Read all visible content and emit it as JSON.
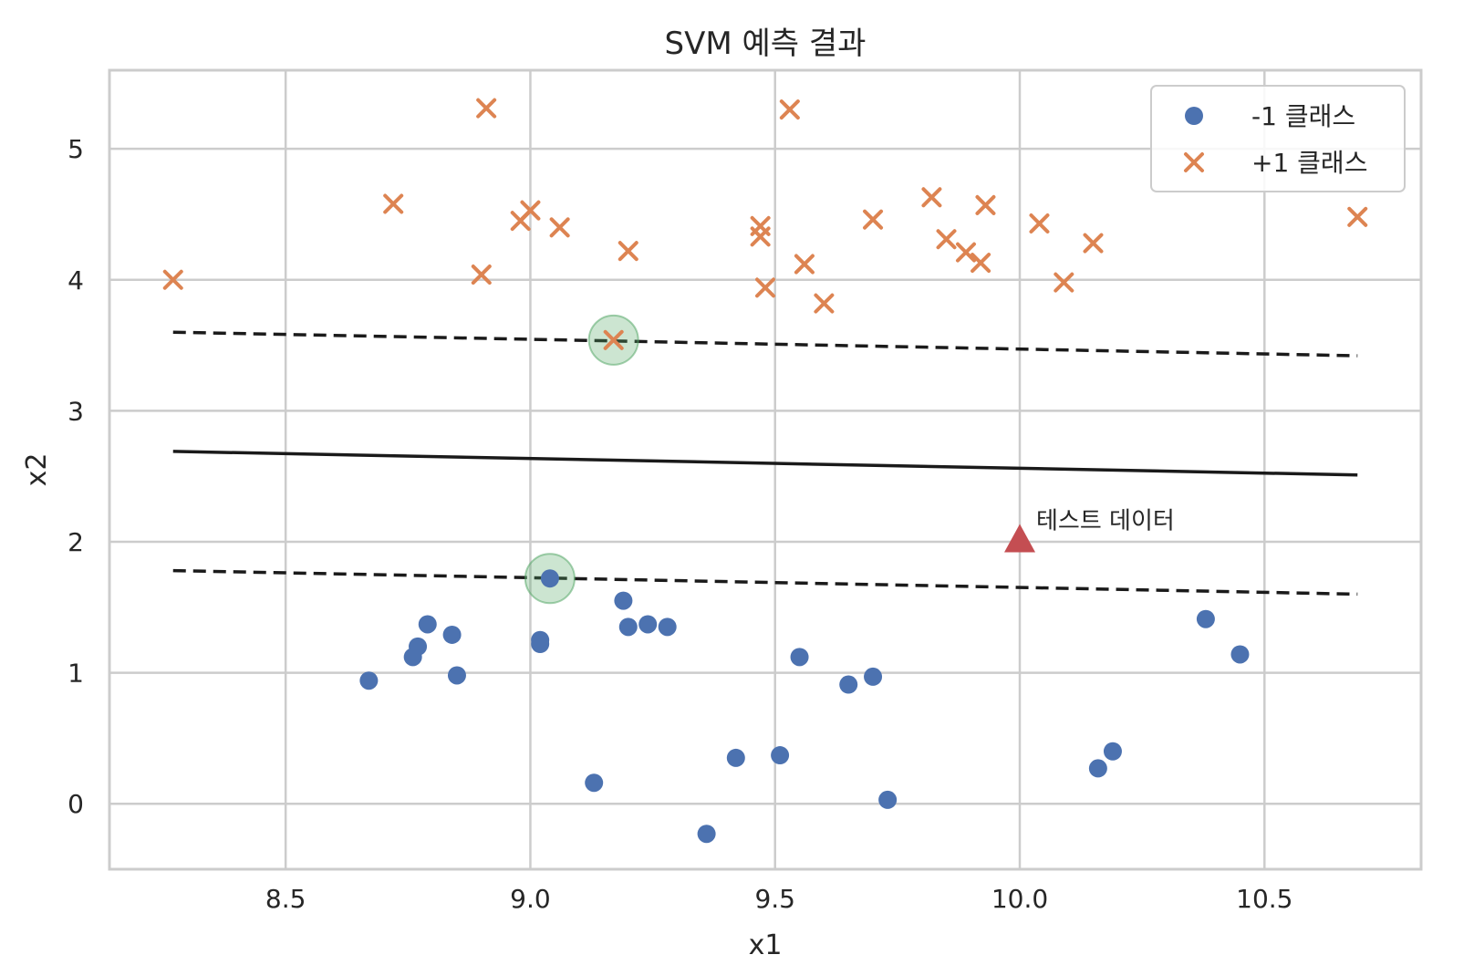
{
  "chart_data": {
    "type": "scatter",
    "title": "SVM 예측 결과",
    "xlabel": "x1",
    "ylabel": "x2",
    "xlim": [
      8.14,
      10.82
    ],
    "ylim": [
      -0.5,
      5.6
    ],
    "xticks": [
      8.5,
      9.0,
      9.5,
      10.0,
      10.5
    ],
    "xtick_labels": [
      "8.5",
      "9.0",
      "9.5",
      "10.0",
      "10.5"
    ],
    "yticks": [
      0,
      1,
      2,
      3,
      4,
      5
    ],
    "ytick_labels": [
      "0",
      "1",
      "2",
      "3",
      "4",
      "5"
    ],
    "grid": true,
    "legend_position": "top-right",
    "colors": {
      "neg": "#4c72b0",
      "pos": "#dd8452",
      "test": "#c44e52",
      "support": "#55a868",
      "line": "#1a1a1a",
      "grid": "#cccccc"
    },
    "series": [
      {
        "name": "-1 클래스",
        "marker": "circle",
        "points": [
          [
            8.67,
            0.94
          ],
          [
            8.76,
            1.12
          ],
          [
            8.77,
            1.2
          ],
          [
            8.79,
            1.37
          ],
          [
            8.84,
            1.29
          ],
          [
            8.85,
            0.98
          ],
          [
            9.02,
            1.22
          ],
          [
            9.02,
            1.25
          ],
          [
            9.04,
            1.72
          ],
          [
            9.13,
            0.16
          ],
          [
            9.19,
            1.55
          ],
          [
            9.2,
            1.35
          ],
          [
            9.24,
            1.37
          ],
          [
            9.28,
            1.35
          ],
          [
            9.36,
            -0.23
          ],
          [
            9.42,
            0.35
          ],
          [
            9.51,
            0.37
          ],
          [
            9.55,
            1.12
          ],
          [
            9.65,
            0.91
          ],
          [
            9.7,
            0.97
          ],
          [
            9.73,
            0.03
          ],
          [
            10.16,
            0.27
          ],
          [
            10.19,
            0.4
          ],
          [
            10.38,
            1.41
          ],
          [
            10.45,
            1.14
          ]
        ]
      },
      {
        "name": "+1 클래스",
        "marker": "x",
        "points": [
          [
            8.27,
            4.0
          ],
          [
            8.72,
            4.58
          ],
          [
            8.9,
            4.04
          ],
          [
            8.91,
            5.31
          ],
          [
            8.98,
            4.45
          ],
          [
            9.0,
            4.53
          ],
          [
            9.06,
            4.4
          ],
          [
            9.17,
            3.54
          ],
          [
            9.2,
            4.22
          ],
          [
            9.47,
            4.33
          ],
          [
            9.47,
            4.41
          ],
          [
            9.48,
            3.94
          ],
          [
            9.53,
            5.3
          ],
          [
            9.56,
            4.12
          ],
          [
            9.6,
            3.82
          ],
          [
            9.7,
            4.46
          ],
          [
            9.82,
            4.63
          ],
          [
            9.85,
            4.31
          ],
          [
            9.89,
            4.21
          ],
          [
            9.92,
            4.13
          ],
          [
            9.93,
            4.57
          ],
          [
            10.04,
            4.43
          ],
          [
            10.09,
            3.98
          ],
          [
            10.15,
            4.28
          ],
          [
            10.69,
            4.48
          ]
        ]
      }
    ],
    "support_vectors": [
      [
        9.17,
        3.54
      ],
      [
        9.04,
        1.72
      ]
    ],
    "decision_lines": {
      "x_range": [
        8.27,
        10.69
      ],
      "boundary": [
        2.69,
        2.51
      ],
      "margin_upper": [
        3.6,
        3.42
      ],
      "margin_lower": [
        1.78,
        1.6
      ]
    },
    "test_point": {
      "x": 10.0,
      "y": 2.01,
      "label": "테스트 데이터"
    }
  }
}
